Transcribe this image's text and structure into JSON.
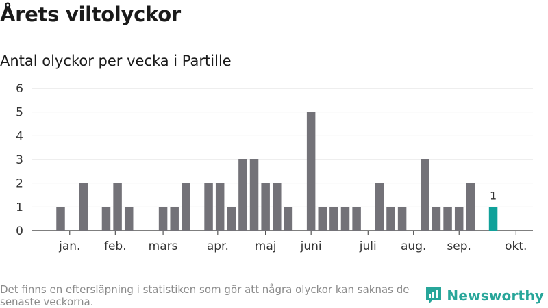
{
  "title": "Årets viltolyckor",
  "subtitle": "Antal olyckor per vecka i Partille",
  "footnote": "Det finns en eftersläpning i statistiken som gör att några olyckor kan saknas de senaste veckorna.",
  "brand": {
    "name": "Newsworthy",
    "icon": "newsworthy-logo-icon"
  },
  "colors": {
    "bar": "#737278",
    "highlight": "#10a19a",
    "grid": "#dddddd",
    "brand": "#28a69a"
  },
  "chart_data": {
    "type": "bar",
    "title": "Antal olyckor per vecka i Partille",
    "xlabel": "",
    "ylabel": "",
    "ylim": [
      0,
      6
    ],
    "yticks": [
      0,
      1,
      2,
      3,
      4,
      5,
      6
    ],
    "grid": true,
    "x": [
      1,
      2,
      3,
      4,
      5,
      6,
      7,
      8,
      9,
      10,
      11,
      12,
      13,
      14,
      15,
      16,
      17,
      18,
      19,
      20,
      21,
      22,
      23,
      24,
      25,
      26,
      27,
      28,
      29,
      30,
      31,
      32,
      33,
      34,
      35,
      36,
      37,
      38,
      39,
      40,
      41
    ],
    "values": [
      0,
      1,
      0,
      2,
      0,
      1,
      2,
      1,
      0,
      0,
      1,
      1,
      2,
      0,
      2,
      2,
      1,
      3,
      3,
      2,
      2,
      1,
      0,
      5,
      1,
      1,
      1,
      1,
      0,
      2,
      1,
      1,
      0,
      3,
      1,
      1,
      1,
      2,
      0,
      1,
      null
    ],
    "highlight_index": 39,
    "data_labels": [
      {
        "index": 39,
        "text": "1"
      }
    ],
    "month_ticks": [
      {
        "label": "jan.",
        "x": 2.8
      },
      {
        "label": "feb.",
        "x": 6.8
      },
      {
        "label": "mars",
        "x": 11
      },
      {
        "label": "apr.",
        "x": 15.8
      },
      {
        "label": "maj",
        "x": 20
      },
      {
        "label": "juni",
        "x": 24
      },
      {
        "label": "juli",
        "x": 29
      },
      {
        "label": "aug.",
        "x": 33
      },
      {
        "label": "sep.",
        "x": 37
      },
      {
        "label": "okt.",
        "x": 42
      }
    ]
  }
}
